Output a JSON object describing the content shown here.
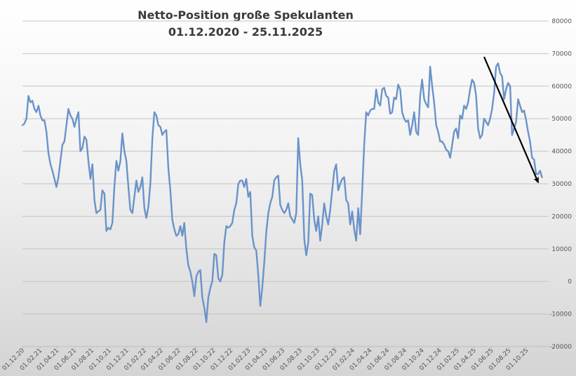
{
  "chart_data": {
    "type": "line",
    "title": "Netto-Position große Spekulanten",
    "subtitle": "01.12.2020 - 25.11.2025",
    "xlabel": "",
    "ylabel": "",
    "ylim": [
      -20000,
      80000
    ],
    "y_ticks": [
      "80000",
      "70000",
      "60000",
      "50000",
      "40000",
      "30000",
      "20000",
      "10000",
      "0",
      "-10000",
      "-20000"
    ],
    "x_tick_labels": [
      "01.12.20",
      "01.02.21",
      "01.04.21",
      "01.06.21",
      "01.08.21",
      "01.10.21",
      "01.12.21",
      "01.02.22",
      "01.04.22",
      "01.06.22",
      "01.08.22",
      "01.10.22",
      "01.12.22",
      "01.02.23",
      "01.04.23",
      "01.06.23",
      "01.08.23",
      "01.10.23",
      "01.12.23",
      "01.02.24",
      "01.04.24",
      "01.06.24",
      "01.08.24",
      "01.10.24",
      "01.12.24",
      "01.02.25",
      "01.04.25",
      "01.06.25",
      "01.08.25",
      "01.10.25"
    ],
    "grid": true,
    "legend": "none",
    "line_color": "#6a93c9",
    "arrow_color": "#000000",
    "trend_arrow": {
      "from": [
        "2025-05-06",
        69000
      ],
      "to": [
        "2025-11-11",
        30500
      ]
    },
    "series": [
      {
        "x": [
          "2020-12-01",
          "2020-12-08",
          "2020-12-15",
          "2020-12-22",
          "2020-12-29",
          "2021-01-05",
          "2021-01-12",
          "2021-01-19",
          "2021-01-26",
          "2021-02-02",
          "2021-02-09",
          "2021-02-16",
          "2021-02-23",
          "2021-03-02",
          "2021-03-09",
          "2021-03-16",
          "2021-03-23",
          "2021-03-30",
          "2021-04-06",
          "2021-04-13",
          "2021-04-20",
          "2021-04-27",
          "2021-05-04",
          "2021-05-11",
          "2021-05-18",
          "2021-05-25",
          "2021-06-01",
          "2021-06-08",
          "2021-06-15",
          "2021-06-22",
          "2021-06-29",
          "2021-07-06",
          "2021-07-13",
          "2021-07-20",
          "2021-07-27",
          "2021-08-03",
          "2021-08-10",
          "2021-08-17",
          "2021-08-24",
          "2021-08-31",
          "2021-09-07",
          "2021-09-14",
          "2021-09-21",
          "2021-09-28",
          "2021-10-05",
          "2021-10-12",
          "2021-10-19",
          "2021-10-26",
          "2021-11-02",
          "2021-11-09",
          "2021-11-16",
          "2021-11-23",
          "2021-11-30",
          "2021-12-07",
          "2021-12-14",
          "2021-12-21",
          "2021-12-28",
          "2022-01-04",
          "2022-01-11",
          "2022-01-18",
          "2022-01-25",
          "2022-02-01",
          "2022-02-08",
          "2022-02-15",
          "2022-02-22",
          "2022-03-01",
          "2022-03-08",
          "2022-03-15",
          "2022-03-22",
          "2022-03-29",
          "2022-04-05",
          "2022-04-12",
          "2022-04-19",
          "2022-04-26",
          "2022-05-03",
          "2022-05-10",
          "2022-05-17",
          "2022-05-24",
          "2022-05-31",
          "2022-06-07",
          "2022-06-14",
          "2022-06-21",
          "2022-06-28",
          "2022-07-05",
          "2022-07-12",
          "2022-07-19",
          "2022-07-26",
          "2022-08-02",
          "2022-08-09",
          "2022-08-16",
          "2022-08-23",
          "2022-08-30",
          "2022-09-06",
          "2022-09-13",
          "2022-09-20",
          "2022-09-27",
          "2022-10-04",
          "2022-10-11",
          "2022-10-18",
          "2022-10-25",
          "2022-11-01",
          "2022-11-08",
          "2022-11-15",
          "2022-11-22",
          "2022-11-29",
          "2022-12-06",
          "2022-12-13",
          "2022-12-20",
          "2022-12-27",
          "2023-01-03",
          "2023-01-10",
          "2023-01-17",
          "2023-01-24",
          "2023-01-31",
          "2023-02-07",
          "2023-02-14",
          "2023-02-21",
          "2023-02-28",
          "2023-03-07",
          "2023-03-14",
          "2023-03-21",
          "2023-03-28",
          "2023-04-04",
          "2023-04-11",
          "2023-04-18",
          "2023-04-25",
          "2023-05-02",
          "2023-05-09",
          "2023-05-16",
          "2023-05-23",
          "2023-05-30",
          "2023-06-06",
          "2023-06-13",
          "2023-06-20",
          "2023-06-27",
          "2023-07-04",
          "2023-07-11",
          "2023-07-18",
          "2023-07-25",
          "2023-08-01",
          "2023-08-08",
          "2023-08-15",
          "2023-08-22",
          "2023-08-29",
          "2023-09-05",
          "2023-09-12",
          "2023-09-19",
          "2023-09-26",
          "2023-10-03",
          "2023-10-10",
          "2023-10-17",
          "2023-10-24",
          "2023-10-31",
          "2023-11-07",
          "2023-11-14",
          "2023-11-21",
          "2023-11-28",
          "2023-12-05",
          "2023-12-12",
          "2023-12-19",
          "2023-12-26",
          "2024-01-02",
          "2024-01-09",
          "2024-01-16",
          "2024-01-23",
          "2024-01-30",
          "2024-02-06",
          "2024-02-13",
          "2024-02-20",
          "2024-02-27",
          "2024-03-05",
          "2024-03-12",
          "2024-03-19",
          "2024-03-26",
          "2024-04-02",
          "2024-04-09",
          "2024-04-16",
          "2024-04-23",
          "2024-04-30",
          "2024-05-07",
          "2024-05-14",
          "2024-05-21",
          "2024-05-28",
          "2024-06-04",
          "2024-06-11",
          "2024-06-18",
          "2024-06-25",
          "2024-07-02",
          "2024-07-09",
          "2024-07-16",
          "2024-07-23",
          "2024-07-30",
          "2024-08-06",
          "2024-08-13",
          "2024-08-20",
          "2024-08-27",
          "2024-09-03",
          "2024-09-10",
          "2024-09-17",
          "2024-09-24",
          "2024-10-01",
          "2024-10-08",
          "2024-10-15",
          "2024-10-22",
          "2024-10-29",
          "2024-11-05",
          "2024-11-12",
          "2024-11-19",
          "2024-11-26",
          "2024-12-03",
          "2024-12-10",
          "2024-12-17",
          "2024-12-24",
          "2024-12-31",
          "2025-01-07",
          "2025-01-14",
          "2025-01-21",
          "2025-01-28",
          "2025-02-04",
          "2025-02-11",
          "2025-02-18",
          "2025-02-25",
          "2025-03-04",
          "2025-03-11",
          "2025-03-18",
          "2025-03-25",
          "2025-04-01",
          "2025-04-08",
          "2025-04-15",
          "2025-04-22",
          "2025-04-29",
          "2025-05-06",
          "2025-05-13",
          "2025-05-20",
          "2025-05-27",
          "2025-06-03",
          "2025-06-10",
          "2025-06-17",
          "2025-06-24",
          "2025-07-01",
          "2025-07-08",
          "2025-07-15",
          "2025-07-22",
          "2025-07-29",
          "2025-08-05",
          "2025-08-12",
          "2025-08-19",
          "2025-08-26",
          "2025-09-02",
          "2025-09-09",
          "2025-09-16",
          "2025-09-23",
          "2025-09-30",
          "2025-10-07",
          "2025-10-14",
          "2025-10-21",
          "2025-10-28",
          "2025-11-04",
          "2025-11-11",
          "2025-11-18",
          "2025-11-25"
        ],
        "values": [
          48000,
          48500,
          50000,
          57000,
          55000,
          55500,
          53000,
          52000,
          54000,
          51000,
          49500,
          49500,
          46000,
          39500,
          36000,
          34000,
          31500,
          29000,
          32000,
          37000,
          42000,
          43000,
          48000,
          53000,
          51000,
          50000,
          47500,
          50000,
          52000,
          40000,
          41000,
          44500,
          43500,
          37000,
          31500,
          36000,
          25000,
          21000,
          21500,
          22000,
          28000,
          27000,
          15500,
          16500,
          16000,
          18000,
          29000,
          37000,
          34000,
          37000,
          45500,
          40000,
          37000,
          29000,
          22000,
          21000,
          26000,
          31000,
          27500,
          29000,
          32000,
          22500,
          19500,
          23000,
          30000,
          44000,
          52000,
          51000,
          48000,
          47500,
          45000,
          46000,
          46500,
          35000,
          28000,
          19000,
          16000,
          14000,
          14500,
          17000,
          14000,
          18000,
          10000,
          5000,
          3000,
          0,
          -4500,
          1500,
          3000,
          3500,
          -5000,
          -8000,
          -12500,
          -5000,
          -2000,
          0,
          8500,
          8000,
          1000,
          0,
          2000,
          12000,
          17000,
          16500,
          17000,
          18000,
          22000,
          24000,
          30000,
          31000,
          31000,
          29000,
          31500,
          26000,
          27500,
          14000,
          10500,
          9500,
          2000,
          -7500,
          -2000,
          6000,
          15000,
          21000,
          24000,
          26000,
          31000,
          32000,
          32500,
          23500,
          22000,
          21000,
          22000,
          24000,
          20000,
          19000,
          18000,
          21000,
          44000,
          36000,
          31000,
          13000,
          8000,
          12000,
          27000,
          26500,
          19000,
          15500,
          20000,
          12500,
          17500,
          24000,
          20000,
          17500,
          22000,
          28000,
          34000,
          36000,
          28000,
          30000,
          31500,
          32000,
          25000,
          24000,
          17500,
          21500,
          16000,
          12500,
          22500,
          14500,
          28000,
          42000,
          52000,
          51000,
          52500,
          53000,
          53000,
          59000,
          55000,
          54000,
          59000,
          59500,
          57000,
          56500,
          51500,
          52000,
          56500,
          56000,
          60500,
          59000,
          52000,
          50000,
          49000,
          49500,
          45000,
          48000,
          52000,
          46000,
          45000,
          57000,
          62000,
          56000,
          54500,
          53500,
          66000,
          60000,
          55000,
          48000,
          46000,
          43000,
          43000,
          42000,
          40500,
          40000,
          38000,
          42000,
          46000,
          47000,
          44000,
          51000,
          50000,
          54000,
          53000,
          55000,
          59000,
          62000,
          61000,
          57000,
          47000,
          44000,
          45000,
          50000,
          49000,
          48000,
          50000,
          53000,
          58000,
          66000,
          67000,
          64000,
          63000,
          56000,
          59000,
          61000,
          60000,
          45000,
          47000,
          49000,
          56000,
          54000,
          52000,
          52500,
          49500,
          46000,
          43000,
          38000,
          37500,
          33000,
          33000,
          34000,
          32000
        ]
      }
    ]
  }
}
